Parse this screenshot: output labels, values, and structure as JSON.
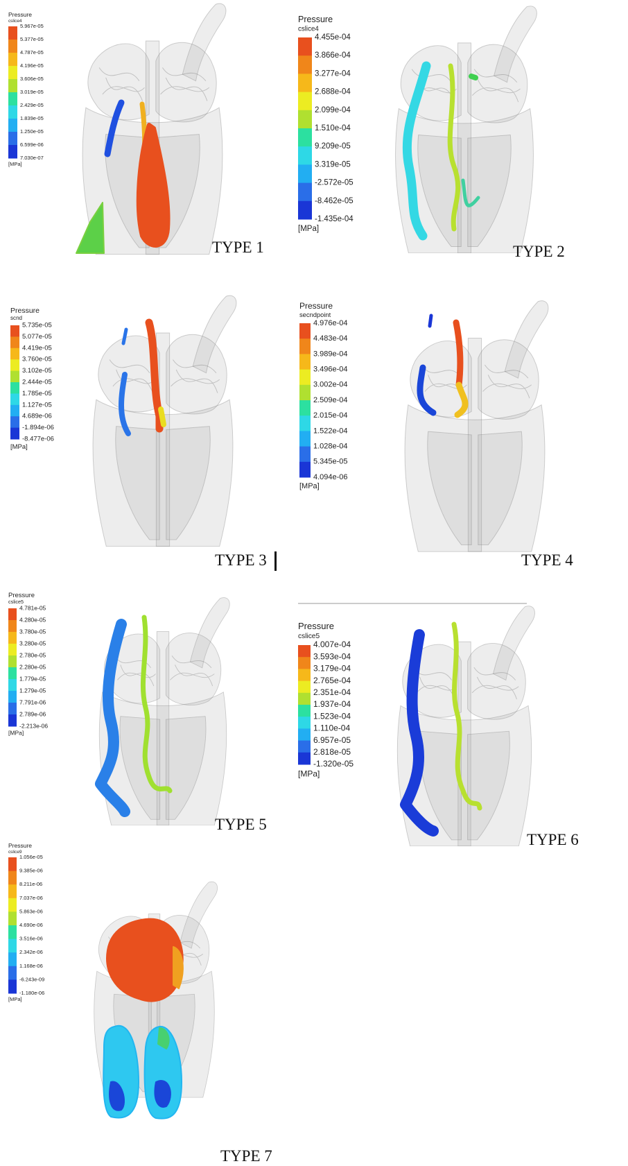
{
  "panels": [
    {
      "label": "TYPE 1",
      "legend": {
        "title": "Pressure",
        "variable": "cslice4",
        "ticks": [
          "5.967e-05",
          "5.377e-05",
          "4.787e-05",
          "4.196e-05",
          "3.606e-05",
          "3.019e-05",
          "2.429e-05",
          "1.839e-05",
          "1.250e-05",
          "6.599e-06",
          "7.030e-07"
        ],
        "unit": "[MPa]"
      }
    },
    {
      "label": "TYPE 2",
      "legend": {
        "title": "Pressure",
        "variable": "cslice4",
        "ticks": [
          "4.455e-04",
          "3.866e-04",
          "3.277e-04",
          "2.688e-04",
          "2.099e-04",
          "1.510e-04",
          "9.209e-05",
          "3.319e-05",
          "-2.572e-05",
          "-8.462e-05",
          "-1.435e-04"
        ],
        "unit": "[MPa]"
      }
    },
    {
      "label": "TYPE 3",
      "legend": {
        "title": "Pressure",
        "variable": "scnd",
        "ticks": [
          "5.735e-05",
          "5.077e-05",
          "4.419e-05",
          "3.760e-05",
          "3.102e-05",
          "2.444e-05",
          "1.785e-05",
          "1.127e-05",
          "4.689e-06",
          "-1.894e-06",
          "-8.477e-06"
        ],
        "unit": "[MPa]"
      }
    },
    {
      "label": "TYPE 4",
      "legend": {
        "title": "Pressure",
        "variable": "secndpoint",
        "ticks": [
          "4.976e-04",
          "4.483e-04",
          "3.989e-04",
          "3.496e-04",
          "3.002e-04",
          "2.509e-04",
          "2.015e-04",
          "1.522e-04",
          "1.028e-04",
          "5.345e-05",
          "4.094e-06"
        ],
        "unit": "[MPa]"
      }
    },
    {
      "label": "TYPE 5",
      "legend": {
        "title": "Pressure",
        "variable": "cslice5",
        "ticks": [
          "4.781e-05",
          "4.280e-05",
          "3.780e-05",
          "3.280e-05",
          "2.780e-05",
          "2.280e-05",
          "1.779e-05",
          "1.279e-05",
          "7.791e-06",
          "2.789e-06",
          "-2.213e-06"
        ],
        "unit": "[MPa]"
      }
    },
    {
      "label": "TYPE 6",
      "legend": {
        "title": "Pressure",
        "variable": "cslice5",
        "ticks": [
          "4.007e-04",
          "3.593e-04",
          "3.179e-04",
          "2.765e-04",
          "2.351e-04",
          "1.937e-04",
          "1.523e-04",
          "1.110e-04",
          "6.957e-05",
          "2.818e-05",
          "-1.320e-05"
        ],
        "unit": "[MPa]"
      }
    },
    {
      "label": "TYPE 7",
      "legend": {
        "title": "Pressure",
        "variable": "cslice9",
        "ticks": [
          "1.056e-05",
          "9.385e-06",
          "8.211e-06",
          "7.037e-06",
          "5.863e-06",
          "4.690e-06",
          "3.516e-06",
          "2.342e-06",
          "1.168e-06",
          "-6.243e-09",
          "-1.180e-06"
        ],
        "unit": "[MPa]"
      }
    }
  ]
}
